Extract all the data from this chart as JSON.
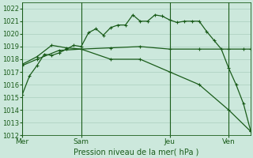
{
  "title": "Pression niveau de la mer( hPa )",
  "bg_color": "#cce8dc",
  "grid_color": "#aacfbe",
  "line_color": "#1a5c1a",
  "ylim": [
    1012,
    1022.5
  ],
  "yticks": [
    1012,
    1013,
    1014,
    1015,
    1016,
    1017,
    1018,
    1019,
    1020,
    1021,
    1022
  ],
  "day_labels": [
    "Mer",
    "Sam",
    "Jeu",
    "Ven"
  ],
  "series1_x": [
    0,
    1,
    2,
    3,
    4,
    5,
    6,
    7,
    8,
    9,
    10,
    11,
    12,
    13,
    14,
    15,
    16,
    17,
    18,
    19,
    20,
    21,
    22,
    23,
    24,
    25,
    26,
    27,
    28,
    29,
    30,
    31
  ],
  "series1_y": [
    1015.2,
    1016.7,
    1017.5,
    1018.4,
    1018.3,
    1018.5,
    1018.8,
    1019.1,
    1019.0,
    1020.1,
    1020.4,
    1019.9,
    1020.5,
    1020.7,
    1020.7,
    1021.5,
    1021.0,
    1021.0,
    1021.5,
    1021.4,
    1021.1,
    1020.9,
    1021.0,
    1021.0,
    1021.0,
    1020.2,
    1019.5,
    1018.8,
    1017.3,
    1016.0,
    1014.5,
    1012.3
  ],
  "series2_x": [
    0,
    2,
    5,
    8,
    12,
    16,
    20,
    24,
    28,
    30,
    31
  ],
  "series2_y": [
    1017.5,
    1018.0,
    1018.7,
    1018.8,
    1018.9,
    1019.0,
    1018.8,
    1018.8,
    1018.8,
    1018.8,
    1018.8
  ],
  "series3_x": [
    0,
    2,
    4,
    6,
    8,
    12,
    16,
    20,
    24,
    28,
    31
  ],
  "series3_y": [
    1017.6,
    1018.2,
    1019.1,
    1018.9,
    1018.8,
    1018.0,
    1018.0,
    1017.0,
    1016.0,
    1014.0,
    1012.3
  ]
}
